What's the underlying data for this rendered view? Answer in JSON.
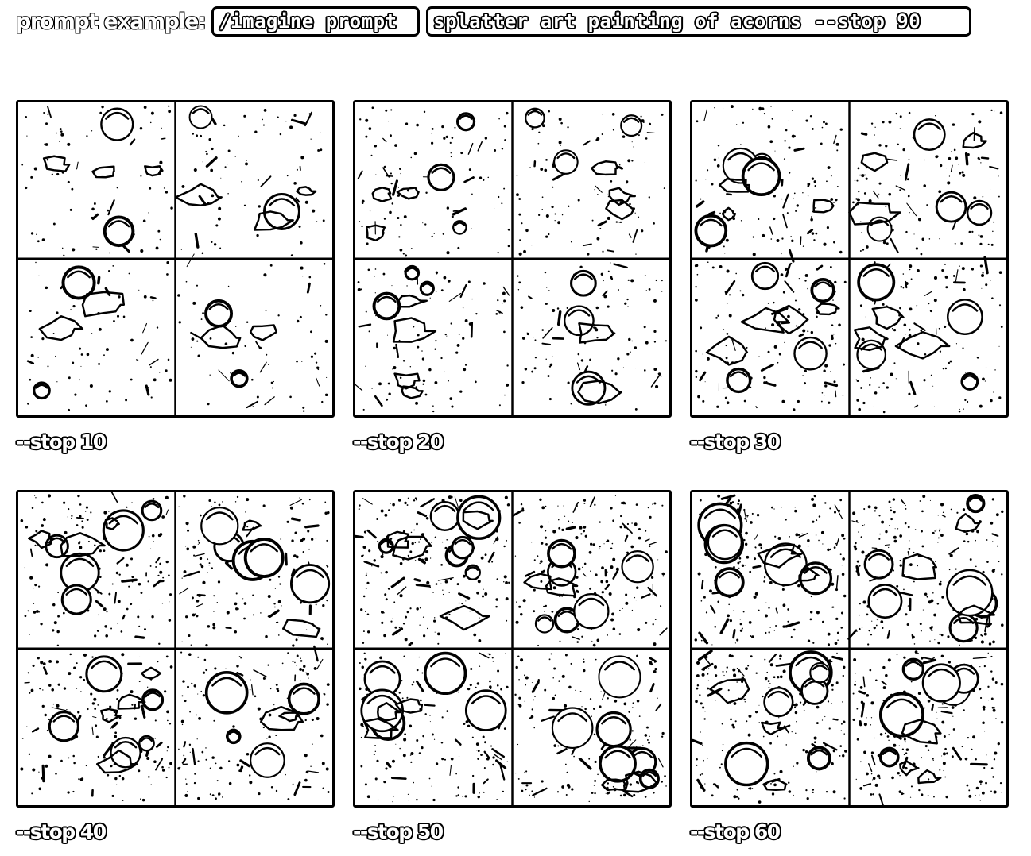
{
  "header": {
    "label": "prompt example:",
    "command": "/imagine prompt",
    "prompt": "splatter art painting of acorns --stop 90"
  },
  "panels": [
    {
      "caption": "--stop 10",
      "density": 0.1
    },
    {
      "caption": "--stop 20",
      "density": 0.2
    },
    {
      "caption": "--stop 30",
      "density": 0.3
    },
    {
      "caption": "--stop 40",
      "density": 0.4
    },
    {
      "caption": "--stop 50",
      "density": 0.5
    },
    {
      "caption": "--stop 60",
      "density": 0.6
    }
  ]
}
